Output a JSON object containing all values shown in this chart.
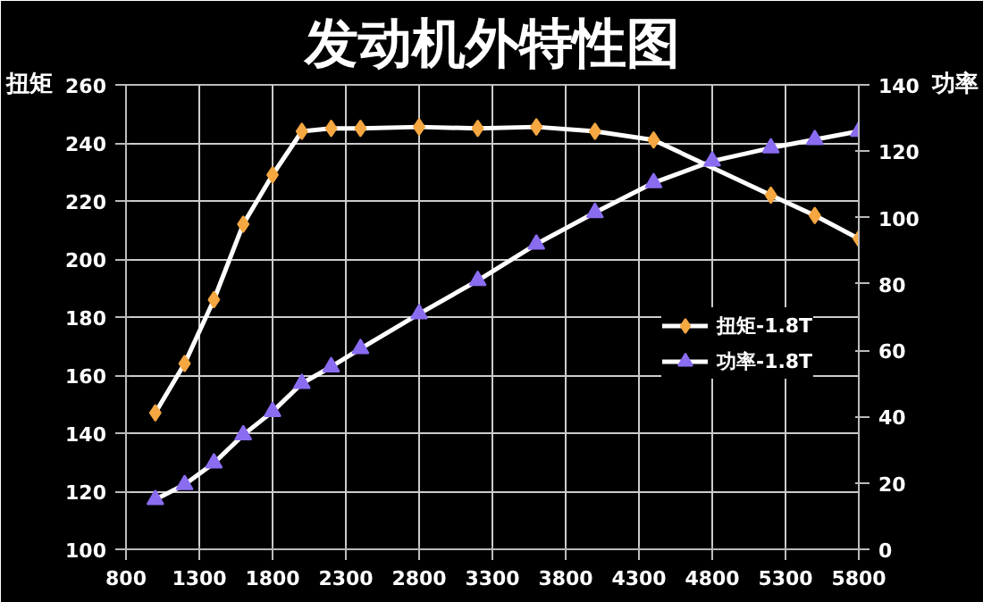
{
  "chart_data": {
    "type": "line",
    "title": "发动机外特性图",
    "ylabel": "扭矩",
    "y2label": "功率",
    "x": [
      1000,
      1200,
      1400,
      1600,
      1800,
      2000,
      2200,
      2400,
      2800,
      3200,
      3600,
      4000,
      4400,
      4800,
      5200,
      5500,
      5800
    ],
    "series": [
      {
        "name": "扭矩-1.8T",
        "color": "#f5a742",
        "marker": "diamond",
        "values": [
          147,
          164,
          186,
          212,
          229,
          244,
          245,
          245,
          245.5,
          245,
          245.5,
          244,
          241,
          null,
          222,
          215,
          207
        ]
      },
      {
        "name": "功率-1.8T",
        "color": "#8a6cf0",
        "marker": "triangle",
        "axis": "y2",
        "values": [
          15,
          19.5,
          26,
          34.5,
          41.5,
          50,
          55,
          60.5,
          71,
          81,
          92,
          101.5,
          110.5,
          117,
          121,
          123.5,
          126
        ]
      }
    ],
    "xlim": [
      800,
      5800
    ],
    "xticks": [
      800,
      1300,
      1800,
      2300,
      2800,
      3300,
      3800,
      4300,
      4800,
      5300,
      5800
    ],
    "ylim": [
      100,
      260
    ],
    "yticks": [
      100,
      120,
      140,
      160,
      180,
      200,
      220,
      240,
      260
    ],
    "y2lim": [
      0,
      140
    ],
    "y2ticks": [
      0,
      20,
      40,
      60,
      80,
      100,
      120,
      140
    ],
    "grid": true,
    "legend": "right",
    "line_style": "solid"
  }
}
